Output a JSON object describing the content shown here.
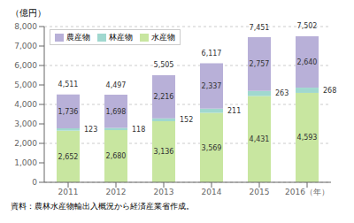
{
  "chart_data": {
    "type": "bar",
    "stacked": true,
    "y_label": "（億円）",
    "categories": [
      "2011",
      "2012",
      "2013",
      "2014",
      "2015",
      "2016（年）"
    ],
    "series": [
      {
        "name": "水産物",
        "color": "#c8e6a0",
        "values": [
          2652,
          2680,
          3136,
          3569,
          4431,
          4593
        ],
        "value_labels": [
          "2,652",
          "2,680",
          "3,136",
          "3,569",
          "4,431",
          "4,593"
        ]
      },
      {
        "name": "林産物",
        "color": "#a0d8cf",
        "values": [
          123,
          118,
          152,
          211,
          263,
          268
        ],
        "value_labels": [
          "123",
          "118",
          "152",
          "211",
          "263",
          "268"
        ]
      },
      {
        "name": "農産物",
        "color": "#b8b0d8",
        "values": [
          1736,
          1698,
          2216,
          2337,
          2757,
          2640
        ],
        "value_labels": [
          "1,736",
          "1,698",
          "2,216",
          "2,337",
          "2,757",
          "2,640"
        ]
      }
    ],
    "totals": [
      4511,
      4497,
      5505,
      6117,
      7451,
      7502
    ],
    "total_labels": [
      "4,511",
      "4,497",
      "5,505",
      "6,117",
      "7,451",
      "7,502"
    ],
    "ylim": [
      0,
      8000
    ],
    "yticks": [
      0,
      {
        "value": 1000,
        "label": "1,000"
      },
      {
        "value": 2000,
        "label": "2,000"
      },
      {
        "value": 3000,
        "label": "3,000"
      },
      {
        "value": 4000,
        "label": "4,000"
      },
      {
        "value": 5000,
        "label": "5,000"
      },
      {
        "value": 6000,
        "label": "6,000"
      },
      {
        "value": 7000,
        "label": "7,000"
      },
      {
        "value": 8000,
        "label": "8,000"
      }
    ],
    "grid": true,
    "data_labels": true,
    "legend": "upper left",
    "annotations": [
      "資料：農林水産物輸出入概況から経済産業省作成。"
    ]
  }
}
